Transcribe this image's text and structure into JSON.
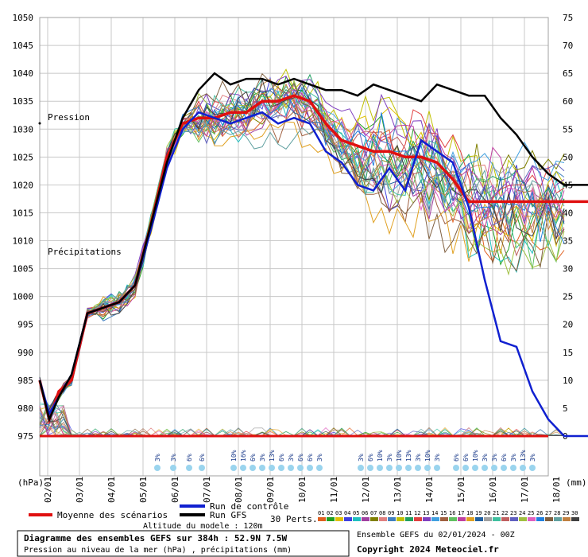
{
  "chart_data": {
    "type": "line",
    "x_ticks": [
      "02/01",
      "03/01",
      "04/01",
      "05/01",
      "06/01",
      "07/01",
      "08/01",
      "09/01",
      "10/01",
      "11/01",
      "12/01",
      "13/01",
      "14/01",
      "15/01",
      "16/01",
      "17/01",
      "18/01"
    ],
    "y_left": {
      "label": "(hPa)",
      "ticks": [
        1050,
        1045,
        1040,
        1035,
        1030,
        1025,
        1020,
        1015,
        1010,
        1005,
        1000,
        995,
        990,
        985,
        980,
        975
      ],
      "range": [
        975,
        1050
      ]
    },
    "y_right": {
      "label": "(mm)",
      "ticks": [
        75,
        70,
        65,
        60,
        55,
        50,
        45,
        40,
        35,
        30,
        25,
        20,
        15,
        10,
        5,
        0
      ],
      "range": [
        0,
        75
      ]
    },
    "grid": true,
    "annotations": {
      "pressure": "Pression",
      "precip": "Précipitations"
    },
    "series": [
      {
        "name": "Moyenne des scénarios",
        "color": "#e01010",
        "x": [
          0,
          0.3,
          0.6,
          1,
          1.5,
          2,
          2.5,
          3,
          3.5,
          4,
          4.5,
          5,
          5.5,
          6,
          6.5,
          7,
          7.5,
          8,
          8.5,
          9,
          9.5,
          10,
          10.5,
          11,
          11.5,
          12,
          12.5,
          13,
          13.5,
          14,
          14.5,
          15,
          15.5,
          16,
          16.5,
          17,
          17.25
        ],
        "values": [
          985,
          978,
          983,
          985,
          997,
          998,
          999,
          1002,
          1013,
          1025,
          1031,
          1032,
          1032,
          1033,
          1033,
          1035,
          1035,
          1036,
          1035,
          1031,
          1028,
          1027,
          1026,
          1026,
          1025,
          1025,
          1024,
          1021,
          1017,
          1017,
          1017,
          1017,
          1017,
          1017,
          1017,
          1017,
          1017
        ]
      },
      {
        "name": "Run de contrôle",
        "color": "#1020d0",
        "x": [
          0,
          0.3,
          0.6,
          1,
          1.5,
          2,
          2.5,
          3,
          3.5,
          4,
          4.5,
          5,
          5.5,
          6,
          6.5,
          7,
          7.5,
          8,
          8.5,
          9,
          9.5,
          10,
          10.5,
          11,
          11.5,
          12,
          12.5,
          13,
          13.5,
          14,
          14.5,
          15,
          15.5,
          16,
          16.5,
          17,
          17.25
        ],
        "values": [
          985,
          979,
          982,
          986,
          997,
          998,
          999,
          1002,
          1012,
          1023,
          1030,
          1033,
          1032,
          1031,
          1032,
          1033,
          1031,
          1032,
          1031,
          1026,
          1024,
          1020,
          1019,
          1023,
          1019,
          1028,
          1026,
          1024,
          1016,
          1003,
          992,
          991,
          983,
          978,
          975,
          975,
          975
        ]
      },
      {
        "name": "Run GFS",
        "color": "#000000",
        "x": [
          0,
          0.3,
          0.6,
          1,
          1.5,
          2,
          2.5,
          3,
          3.5,
          4,
          4.5,
          5,
          5.5,
          6,
          6.5,
          7,
          7.5,
          8,
          8.5,
          9,
          9.5,
          10,
          10.5,
          11,
          11.5,
          12,
          12.5,
          13,
          13.5,
          14,
          14.5,
          15,
          15.5,
          16,
          16.5,
          17,
          17.25
        ],
        "values": [
          985,
          978,
          982,
          986,
          997,
          998,
          999,
          1002,
          1013,
          1024,
          1032,
          1037,
          1040,
          1038,
          1039,
          1039,
          1038,
          1039,
          1038,
          1037,
          1037,
          1036,
          1038,
          1037,
          1036,
          1035,
          1038,
          1037,
          1036,
          1036,
          1032,
          1029,
          1025,
          1022,
          1020,
          1020,
          1020
        ]
      }
    ],
    "precip_labels": [
      "3%",
      "3%",
      "6%",
      "6%",
      "10%",
      "16%",
      "6%",
      "3%",
      "13%",
      "6%",
      "3%",
      "6%",
      "6%",
      "3%",
      "3%",
      "6%",
      "10%",
      "3%",
      "10%",
      "13%",
      "3%",
      "10%",
      "3%",
      "6%",
      "6%",
      "10%",
      "3%",
      "3%",
      "6%",
      "3%",
      "13%",
      "3%"
    ]
  },
  "legend": {
    "mean": "Moyenne des scénarios",
    "control": "Run de contrôle",
    "gfs": "Run GFS",
    "perts": "30 Perts.",
    "pert_numbers": [
      "01",
      "02",
      "03",
      "04",
      "05",
      "06",
      "07",
      "08",
      "09",
      "10",
      "11",
      "12",
      "13",
      "14",
      "15",
      "16",
      "17",
      "18",
      "19",
      "20",
      "21",
      "22",
      "23",
      "24",
      "25",
      "26",
      "27",
      "28",
      "29",
      "30"
    ],
    "pert_colors": [
      "#e06020",
      "#20a020",
      "#e0c000",
      "#4040e0",
      "#20c0c0",
      "#a040a0",
      "#808000",
      "#e08080",
      "#4080c0",
      "#c0c000",
      "#20a060",
      "#e04040",
      "#8040c0",
      "#40a0e0",
      "#a06040",
      "#60c060",
      "#c040a0",
      "#e0a020",
      "#2060a0",
      "#a0a0a0",
      "#40c0a0",
      "#c06060",
      "#6060c0",
      "#a0c040",
      "#e060c0",
      "#2080e0",
      "#806040",
      "#60a0a0",
      "#c08040",
      "#404040"
    ]
  },
  "altitude": "Altitude du modele : 120m",
  "info_box": {
    "title": "Diagramme des ensembles GEFS sur 384h : 52.9N 7.5W",
    "subtitle": "Pression au niveau de la mer (hPa) , précipitations (mm)"
  },
  "run_info": "Ensemble GEFS du 02/01/2024 - 00Z",
  "copyright": "Copyright 2024 Meteociel.fr"
}
